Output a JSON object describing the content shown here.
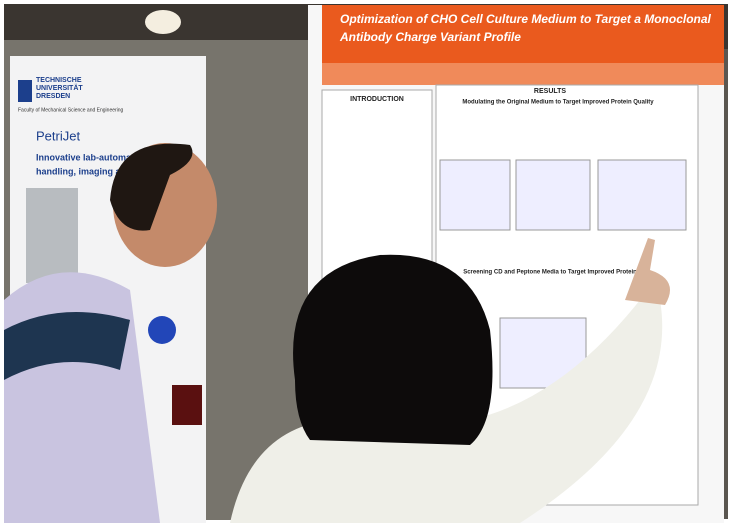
{
  "right_poster": {
    "title_lines": [
      "Optimization of CHO Cell Culture Medium to Target a Monoclonal",
      "Antibody Charge Variant Profile"
    ],
    "sections": [
      "INTRODUCTION",
      "RESULTS"
    ],
    "headings": [
      "Modulating the Original Medium to Target Improved Protein Quality",
      "Screening CD and Peptone Media to Target Improved Protein Qu"
    ]
  },
  "left_poster": {
    "logo": [
      "TECHNISCHE",
      "UNIVERSITÄT",
      "DRESDEN"
    ],
    "faculty": "Faculty of Mechanical Science and Engineering",
    "title": "PetriJet",
    "subtitle": [
      "Innovative lab-automat",
      "handling, imaging and"
    ]
  }
}
